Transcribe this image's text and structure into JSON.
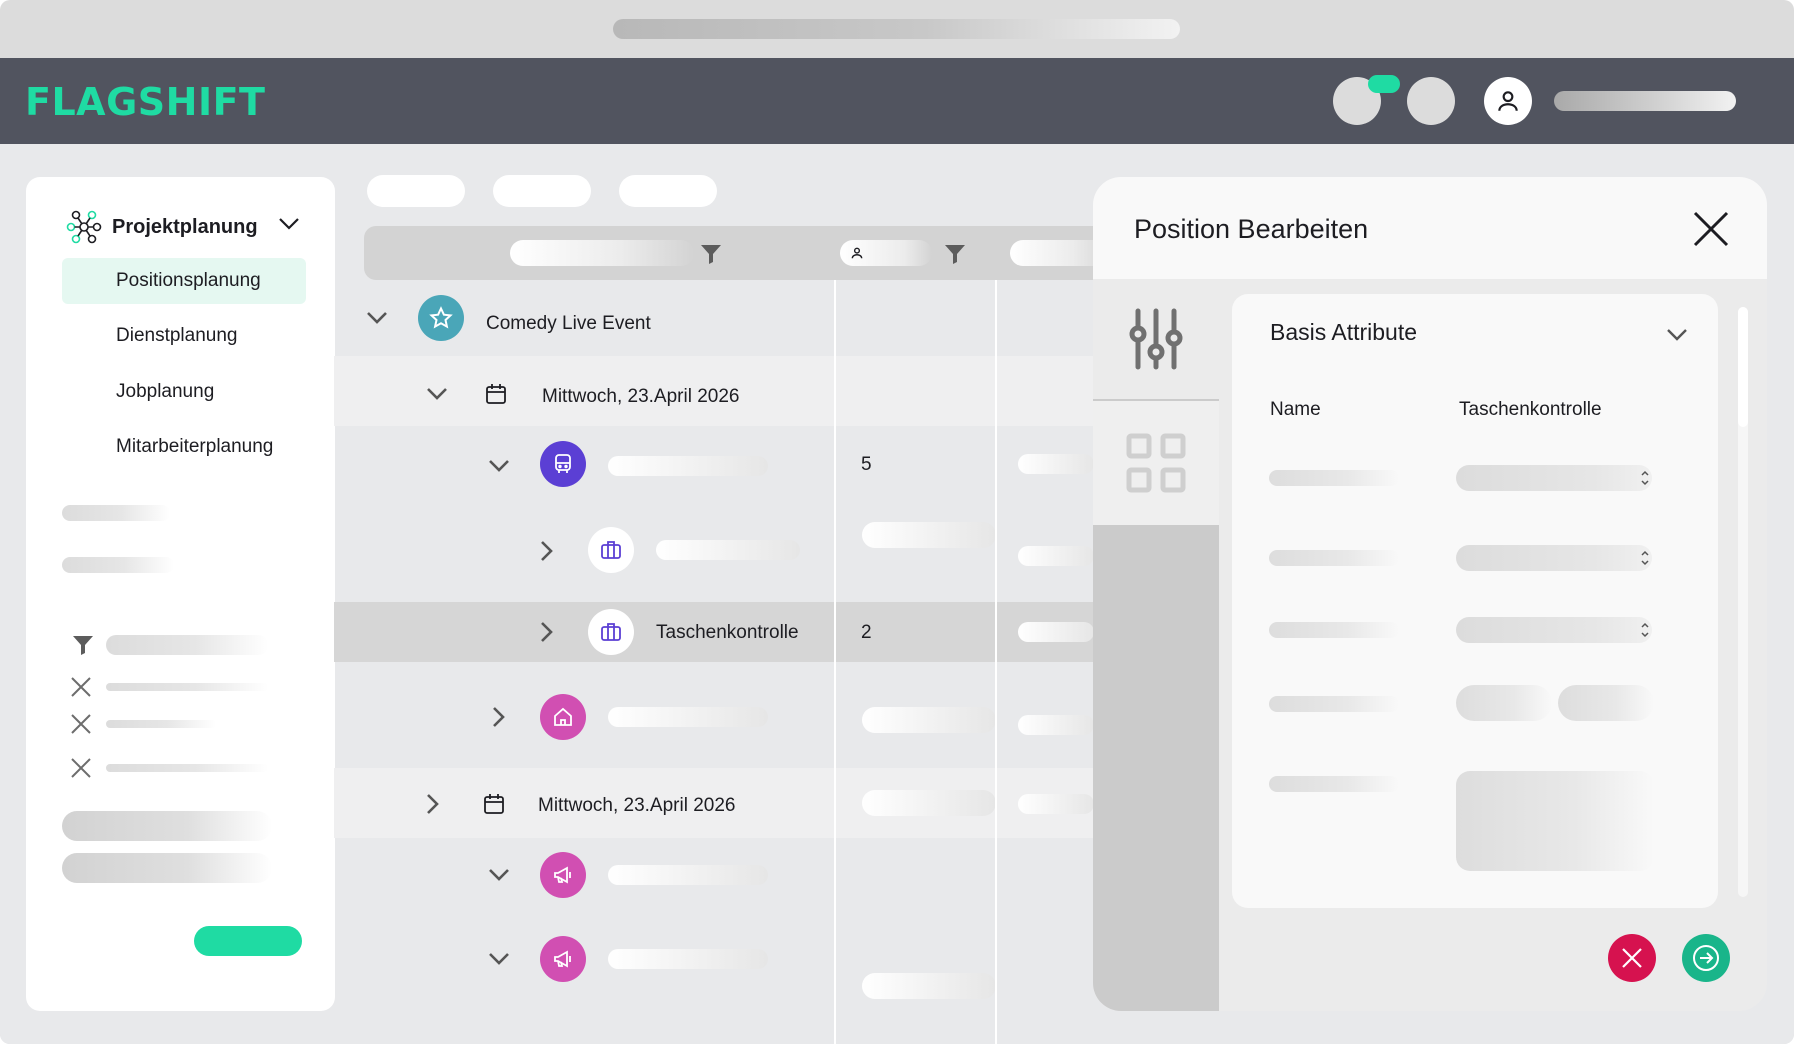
{
  "app": {
    "logo": "FLAGSHIFT",
    "accent_color": "#1fdba3",
    "header_color": "#51545f"
  },
  "sidebar": {
    "project_icon": "network-nodes-icon",
    "section_title": "Projektplanung",
    "items": [
      {
        "label": "Positionsplanung",
        "active": true
      },
      {
        "label": "Dienstplanung",
        "active": false
      },
      {
        "label": "Jobplanung",
        "active": false
      },
      {
        "label": "Mitarbeiterplanung",
        "active": false
      }
    ],
    "filter_icon": "funnel-icon",
    "clear_icon": "x-icon"
  },
  "toolbar": {
    "filter_icon": "funnel-icon",
    "person_icon": "person-icon"
  },
  "tree": {
    "event": {
      "label": "Comedy Live Event",
      "icon": "star-icon",
      "color": "#4aa6b8"
    },
    "days": [
      {
        "label": "Mittwoch, 23.April 2026",
        "icon": "calendar-icon"
      },
      {
        "label": "Mittwoch, 23.April 2026",
        "icon": "calendar-icon"
      }
    ],
    "rows": [
      {
        "icon": "bus-icon",
        "color": "#5b3fd4",
        "count": "5"
      },
      {
        "icon": "briefcase-icon",
        "color": "#ffffff"
      },
      {
        "icon": "briefcase-icon",
        "color": "#ffffff",
        "label": "Taschenkontrolle",
        "count": "2"
      },
      {
        "icon": "house-icon",
        "color": "#d14fb2"
      },
      {
        "icon": "megaphone-icon",
        "color": "#d14fb2"
      },
      {
        "icon": "megaphone-icon",
        "color": "#d14fb2"
      }
    ]
  },
  "panel": {
    "title": "Position Bearbeiten",
    "close_icon": "close-icon",
    "tabs": [
      "sliders-icon",
      "grid-icon"
    ],
    "card": {
      "title": "Basis Attribute",
      "name_label": "Name",
      "name_value": "Taschenkontrolle"
    },
    "cancel_color": "#d6124f",
    "confirm_color": "#19b58a"
  }
}
